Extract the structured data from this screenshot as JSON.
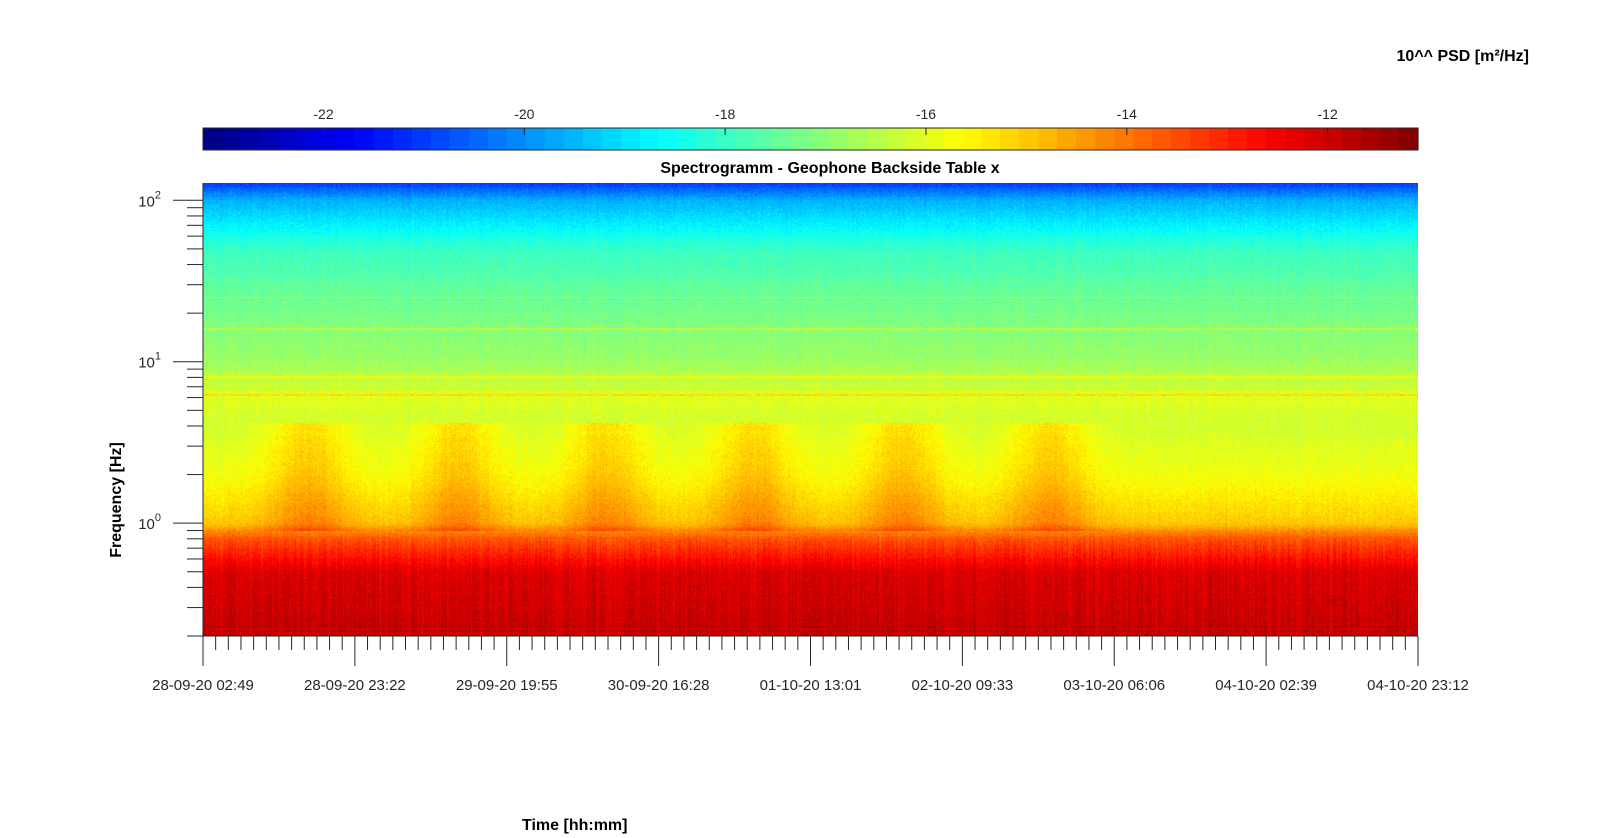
{
  "chart_data": {
    "type": "heatmap",
    "title": "Spectrogramm - Geophone Backside Table x",
    "xlabel": "Time [hh:mm]",
    "ylabel": "Frequency [Hz]",
    "x_ticks": [
      "28-09-20 02:49",
      "28-09-20 23:22",
      "29-09-20 19:55",
      "30-09-20 16:28",
      "01-10-20 13:01",
      "02-10-20 09:33",
      "03-10-20 06:06",
      "04-10-20 02:39",
      "04-10-20 23:12"
    ],
    "y_scale": "log",
    "y_range": [
      0.2,
      128
    ],
    "y_ticks": [
      {
        "value": 1,
        "base": "10",
        "exp": "0"
      },
      {
        "value": 10,
        "base": "10",
        "exp": "1"
      },
      {
        "value": 100,
        "base": "10",
        "exp": "2"
      }
    ],
    "colorbar": {
      "label": "10^^ PSD [m²/Hz]",
      "colormap": "jet",
      "range": [
        -23.2,
        -11.1
      ],
      "ticks": [
        "-22",
        "-20",
        "-18",
        "-16",
        "-14",
        "-12"
      ],
      "tick_values": [
        -22,
        -20,
        -18,
        -16,
        -14,
        -12
      ]
    },
    "psd_profile_log10": [
      {
        "freq": 0.2,
        "value": -11.9
      },
      {
        "freq": 0.5,
        "value": -12.2
      },
      {
        "freq": 0.8,
        "value": -13.6
      },
      {
        "freq": 1.0,
        "value": -15.0
      },
      {
        "freq": 2.0,
        "value": -15.8
      },
      {
        "freq": 4.0,
        "value": -16.2
      },
      {
        "freq": 6.0,
        "value": -16.0
      },
      {
        "freq": 10.0,
        "value": -16.8
      },
      {
        "freq": 25.0,
        "value": -17.4
      },
      {
        "freq": 50.0,
        "value": -18.0
      },
      {
        "freq": 100.0,
        "value": -19.6
      },
      {
        "freq": 128.0,
        "value": -21.0
      }
    ],
    "line_features_hz": [
      6.2,
      8,
      16,
      25
    ],
    "daily_activity_peaks": [
      "28-09-20",
      "29-09-20",
      "30-09-20",
      "01-10-20",
      "02-10-20",
      "03-10-20"
    ]
  }
}
